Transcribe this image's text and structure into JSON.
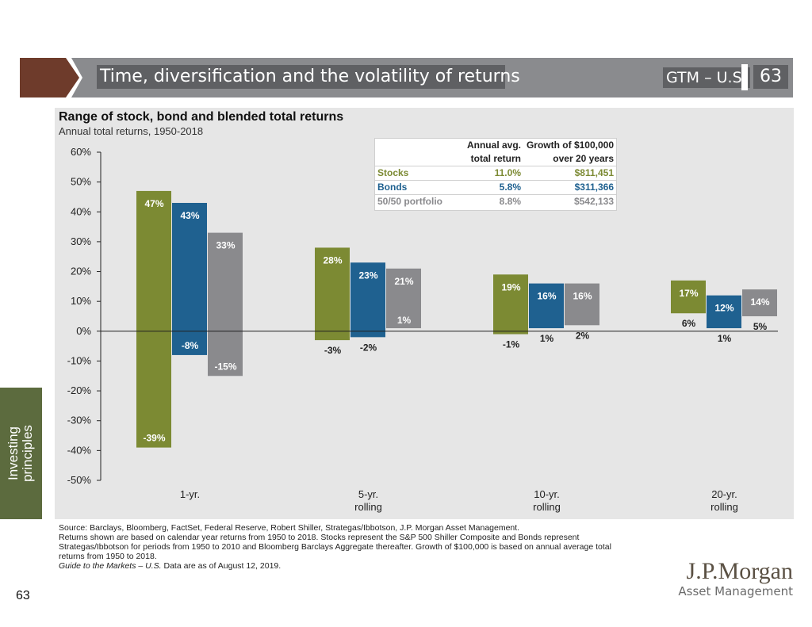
{
  "header": {
    "title": "Time, diversification and the volatility of returns",
    "tag": "GTM – U.S.",
    "page_number": "63"
  },
  "side_tab": {
    "line1": "Investing",
    "line2": "principles"
  },
  "legend": {
    "col1_header_line1": "Annual avg.",
    "col1_header_line2": "total return",
    "col2_header_line1": "Growth of $100,000",
    "col2_header_line2": "over 20 years",
    "rows": [
      {
        "label": "Stocks",
        "avg": "11.0%",
        "growth": "$811,451",
        "color": "#7c8a33"
      },
      {
        "label": "Bonds",
        "avg": "5.8%",
        "growth": "$311,366",
        "color": "#1f6190"
      },
      {
        "label": "50/50 portfolio",
        "avg": "8.8%",
        "growth": "$542,133",
        "color": "#8a8a8d"
      }
    ]
  },
  "chart_data": {
    "type": "bar",
    "title": "Range of stock, bond and blended total returns",
    "subtitle": "Annual total returns, 1950-2018",
    "ylim": [
      -50,
      60
    ],
    "yticks": [
      "60%",
      "50%",
      "40%",
      "30%",
      "20%",
      "10%",
      "0%",
      "-10%",
      "-20%",
      "-30%",
      "-40%",
      "-50%"
    ],
    "categories": [
      {
        "line1": "1-yr.",
        "line2": ""
      },
      {
        "line1": "5-yr.",
        "line2": "rolling"
      },
      {
        "line1": "10-yr.",
        "line2": "rolling"
      },
      {
        "line1": "20-yr.",
        "line2": "rolling"
      }
    ],
    "series": [
      {
        "name": "Stocks",
        "color": "#7c8a33",
        "max": [
          47,
          28,
          19,
          17
        ],
        "min": [
          -39,
          -3,
          -1,
          6
        ],
        "max_labels": [
          "47%",
          "28%",
          "19%",
          "17%"
        ],
        "min_labels": [
          "-39%",
          "-3%",
          "-1%",
          "6%"
        ]
      },
      {
        "name": "Bonds",
        "color": "#1f6190",
        "max": [
          43,
          23,
          16,
          12
        ],
        "min": [
          -8,
          -2,
          1,
          1
        ],
        "max_labels": [
          "43%",
          "23%",
          "16%",
          "12%"
        ],
        "min_labels": [
          "-8%",
          "-2%",
          "1%",
          "1%"
        ]
      },
      {
        "name": "50/50 portfolio",
        "color": "#8a8a8d",
        "max": [
          33,
          21,
          16,
          14
        ],
        "min": [
          -15,
          1,
          2,
          5
        ],
        "max_labels": [
          "33%",
          "21%",
          "16%",
          "14%"
        ],
        "min_labels": [
          "-15%",
          "1%",
          "2%",
          "5%"
        ]
      }
    ]
  },
  "source": {
    "line1": "Source: Barclays, Bloomberg, FactSet, Federal Reserve, Robert Shiller, Strategas/Ibbotson, J.P. Morgan Asset Management.",
    "line2": "Returns shown are based on calendar year returns from 1950 to 2018. Stocks represent the S&P 500 Shiller Composite and Bonds represent Strategas/Ibbotson for periods from 1950 to 2010 and Bloomberg Barclays Aggregate thereafter. Growth of $100,000 is based on annual average total returns from 1950 to 2018.",
    "guide_italic": "Guide to the Markets – U.S.",
    "guide_rest": " Data are as of August 12, 2019."
  },
  "page_number_bottom": "63",
  "logo": {
    "main": "J.P.Morgan",
    "sub": "Asset Management"
  }
}
